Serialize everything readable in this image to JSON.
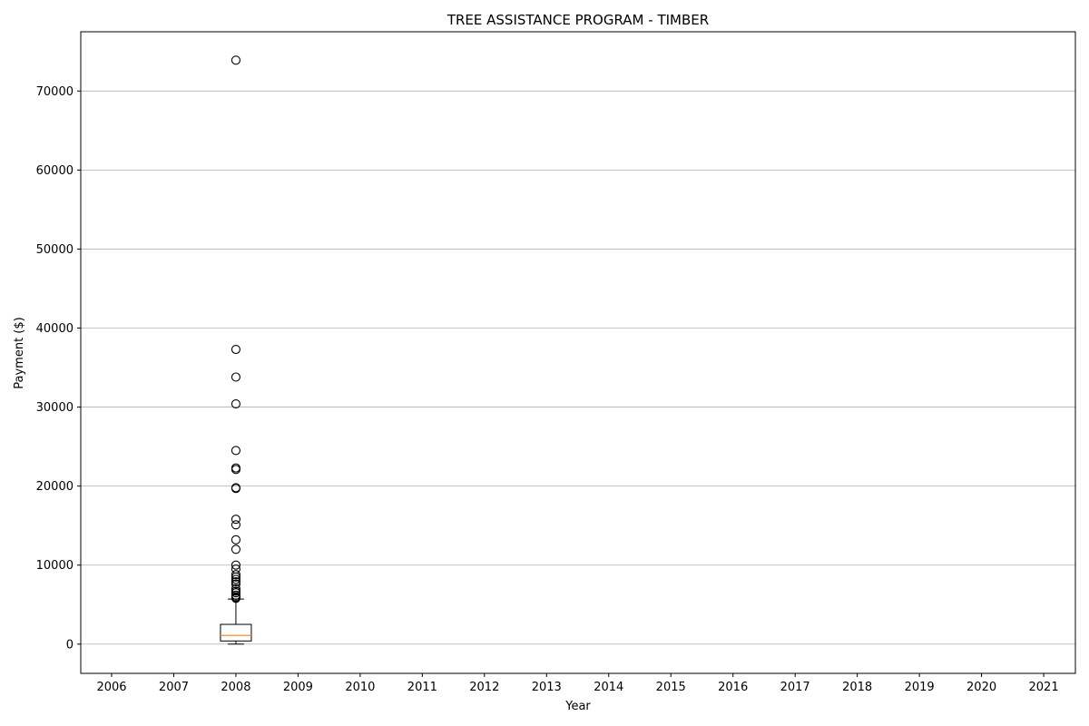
{
  "chart_data": {
    "type": "box",
    "title": "TREE ASSISTANCE PROGRAM - TIMBER",
    "xlabel": "Year",
    "ylabel": "Payment ($)",
    "ylim": [
      -3700,
      77500
    ],
    "yticks": [
      0,
      10000,
      20000,
      30000,
      40000,
      50000,
      60000,
      70000
    ],
    "grid": "y",
    "categories": [
      "2006",
      "2007",
      "2008",
      "2009",
      "2010",
      "2011",
      "2012",
      "2013",
      "2014",
      "2015",
      "2016",
      "2017",
      "2018",
      "2019",
      "2020",
      "2021"
    ],
    "boxes": [
      {
        "category": "2008",
        "whisker_low": 0,
        "q1": 400,
        "median": 1100,
        "q3": 2500,
        "whisker_high": 5700,
        "outliers": [
          73900,
          37300,
          33800,
          30400,
          24500,
          22300,
          22100,
          19800,
          19700,
          15800,
          15100,
          13200,
          12000,
          10000,
          9500,
          8800,
          8500,
          8200,
          7900,
          7600,
          7000,
          6700,
          6500,
          6200,
          6000,
          5900,
          5800
        ]
      }
    ],
    "colors": {
      "median": "#ff7f0e",
      "box": "#000000",
      "grid": "#b0b0b0"
    }
  }
}
